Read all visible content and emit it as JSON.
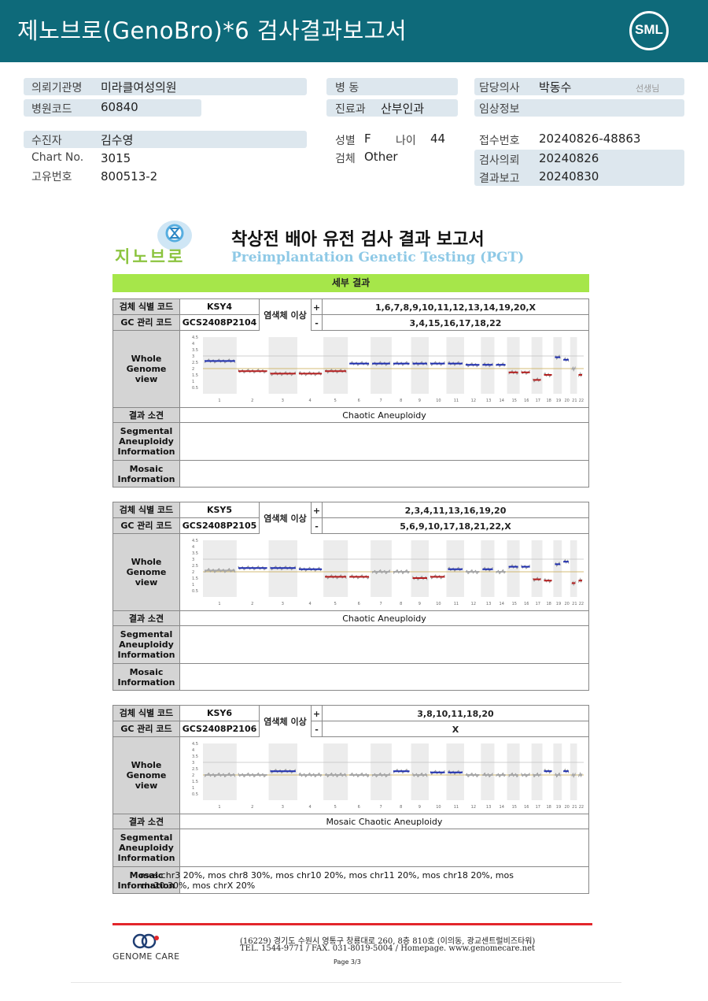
{
  "header": {
    "title": "제노브로(GenoBro)*6 검사결과보고서",
    "logo": "SML"
  },
  "patient": {
    "institution_label": "의뢰기관명",
    "institution": "미라클여성의원",
    "hospital_code_label": "병원코드",
    "hospital_code": "60840",
    "ward_label": "병 동",
    "ward": "",
    "dept_label": "진료과",
    "dept": "산부인과",
    "doctor_label": "담당의사",
    "doctor": "박동수",
    "doctor_suffix": "선생님",
    "clinical_label": "임상정보",
    "clinical": "",
    "patient_label": "수진자",
    "patient_name": "김수영",
    "chart_label": "Chart No.",
    "chart_no": "3015",
    "id_label": "고유번호",
    "id_no": "800513-2",
    "sex_label": "성별",
    "sex": "F",
    "age_label": "나이",
    "age": "44",
    "specimen_label": "검체",
    "specimen": "Other",
    "receipt_label": "접수번호",
    "receipt_no": "20240826-48863",
    "request_label": "검사의뢰",
    "request_date": "20240826",
    "report_label": "결과보고",
    "report_date": "20240830"
  },
  "report": {
    "logo_text": "지노브로",
    "title": "착상전 배아 유전 검사 결과 보고서",
    "subtitle": "Preimplantation Genetic Testing (PGT)",
    "detail_heading": "세부 결과"
  },
  "labels": {
    "sample_code": "검체 식별 코드",
    "gc_code": "GC 관리 코드",
    "abnormal": "염색체 이상",
    "plus": "+",
    "minus": "-",
    "whole_genome_1": "Whole",
    "whole_genome_2": "Genome",
    "whole_genome_3": "view",
    "result": "결과 소견",
    "segmental_1": "Segmental",
    "segmental_2": "Aneuploidy",
    "segmental_3": "Information",
    "mosaic_1": "Mosaic",
    "mosaic_2": "Information"
  },
  "y_ticks": [
    "4.5",
    "4",
    "3.5",
    "3",
    "2.5",
    "2",
    "1.5",
    "1",
    "0.5"
  ],
  "chromosome_ticks": [
    "1",
    "2",
    "3",
    "4",
    "5",
    "6",
    "7",
    "8",
    "9",
    "10",
    "11",
    "12",
    "13",
    "14",
    "15",
    "16",
    "17",
    "18",
    "19",
    "20",
    "21",
    "22"
  ],
  "samples": [
    {
      "code": "KSY4",
      "gc_code": "GCS2408P2104",
      "gain": "1,6,7,8,9,10,11,12,13,14,19,20,X",
      "loss": "3,4,15,16,17,18,22",
      "result": "Chaotic Aneuploidy",
      "segmental": "",
      "mosaic": ""
    },
    {
      "code": "KSY5",
      "gc_code": "GCS2408P2105",
      "gain": "2,3,4,11,13,16,19,20",
      "loss": "5,6,9,10,17,18,21,22,X",
      "result": "Chaotic Aneuploidy",
      "segmental": "",
      "mosaic": ""
    },
    {
      "code": "KSY6",
      "gc_code": "GCS2408P2106",
      "gain": "3,8,10,11,18,20",
      "loss": "X",
      "result": "Mosaic Chaotic Aneuploidy",
      "segmental": "",
      "mosaic": "mos chr3 20%, mos chr8 30%, mos chr10 20%, mos chr11 20%, mos chr18 20%, mos chr20 30%, mos chrX 20%"
    }
  ],
  "footer": {
    "company": "GENOME CARE",
    "address": "(16229) 경기도 수원시 영통구 창룡대로 260, 8층 810호 (이의동, 광교센트럴비즈타워)",
    "contact": "TEL. 1544-9771 / FAX. 031-8019-5004 / Homepage. www.genomecare.net",
    "page": "Page 3/3"
  },
  "colors": {
    "header_bg": "#0e6a7a",
    "gain": "#1f2fb0",
    "loss": "#b41e1e",
    "neutral": "#a8a8a8",
    "detail_bar": "#a6e64a"
  }
}
